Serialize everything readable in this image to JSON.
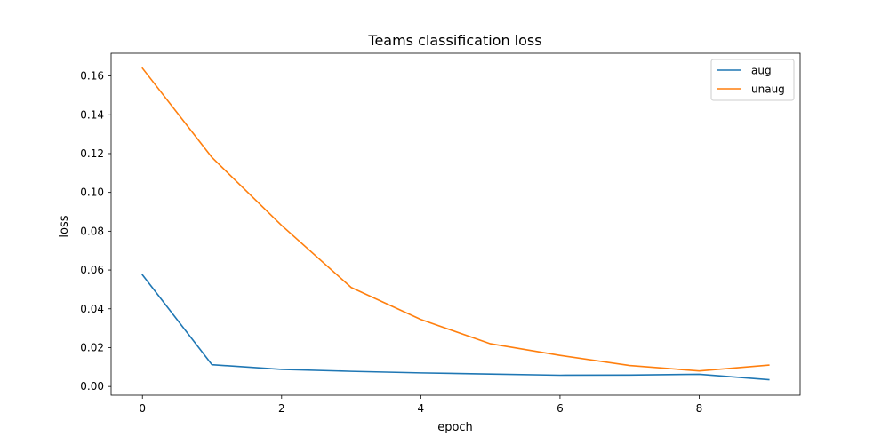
{
  "chart_data": {
    "type": "line",
    "title": "Teams classification loss",
    "xlabel": "epoch",
    "ylabel": "loss",
    "x": [
      0,
      1,
      2,
      3,
      4,
      5,
      6,
      7,
      8,
      9
    ],
    "xlim": [
      -0.45,
      9.45
    ],
    "ylim": [
      -0.0045,
      0.1717
    ],
    "xticks": [
      0,
      2,
      4,
      6,
      8
    ],
    "yticks": [
      0.0,
      0.02,
      0.04,
      0.06,
      0.08,
      0.1,
      0.12,
      0.14,
      0.16
    ],
    "ytick_labels": [
      "0.00",
      "0.02",
      "0.04",
      "0.06",
      "0.08",
      "0.10",
      "0.12",
      "0.14",
      "0.16"
    ],
    "grid": false,
    "legend_position": "top-right",
    "series": [
      {
        "name": "aug",
        "color": "#1f77b4",
        "values": [
          0.0575,
          0.0112,
          0.0088,
          0.0078,
          0.007,
          0.0064,
          0.0058,
          0.0059,
          0.0063,
          0.0035
        ]
      },
      {
        "name": "unaug",
        "color": "#ff7f0e",
        "values": [
          0.164,
          0.118,
          0.083,
          0.051,
          0.0345,
          0.022,
          0.016,
          0.0108,
          0.008,
          0.011
        ]
      }
    ]
  }
}
